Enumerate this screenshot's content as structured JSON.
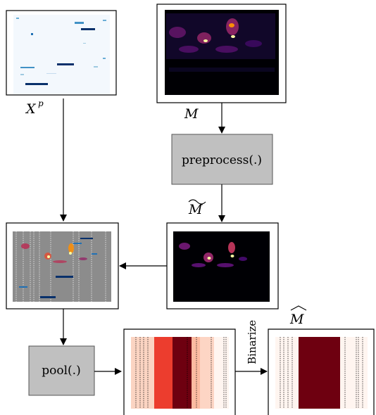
{
  "labels": {
    "xp_base": "X",
    "xp_sup": "p",
    "m": "M",
    "m_tilde": "M",
    "m_hat": "M",
    "preprocess": "preprocess(.)",
    "pool": "pool(.)",
    "binarize": "Binarize"
  },
  "colors": {
    "box_fill": "#c0c0c0",
    "box_stroke": "#555555",
    "spectrogram_bg": "#000004",
    "piano_bg": "#f3f8fd",
    "overlay_bg": "#8c8c8c",
    "pooled_low": "#fbd4c2",
    "pooled_mid": "#ec3d2e",
    "pooled_high": "#6e0010",
    "binary_on": "#6e0010",
    "binary_off": "#fff5f0"
  }
}
